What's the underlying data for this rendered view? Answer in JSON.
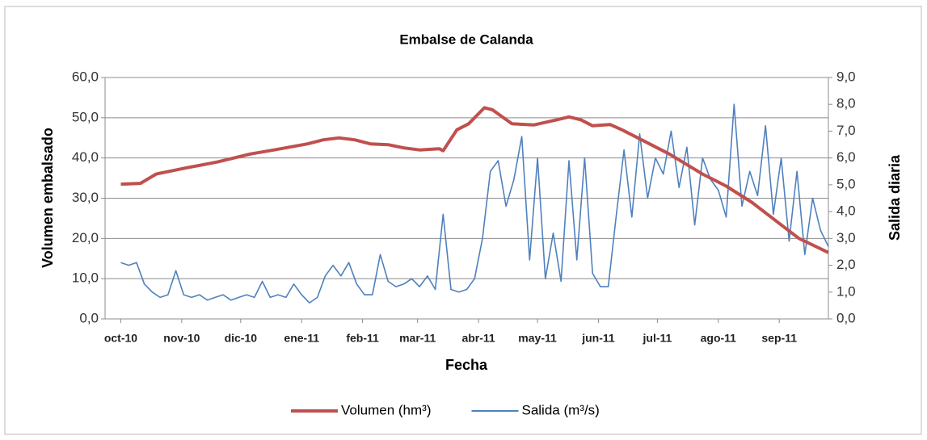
{
  "chart_data": {
    "type": "line",
    "title": "Embalse de Calanda",
    "xlabel": "Fecha",
    "ylabel": "Volumen embalsado",
    "y2label": "Salida diaria",
    "xlim": [
      -8,
      360
    ],
    "xticks": [
      {
        "value": 0,
        "label": "oct-10"
      },
      {
        "value": 31,
        "label": "nov-10"
      },
      {
        "value": 61,
        "label": "dic-10"
      },
      {
        "value": 92,
        "label": "ene-11"
      },
      {
        "value": 123,
        "label": "feb-11"
      },
      {
        "value": 151,
        "label": "mar-11"
      },
      {
        "value": 182,
        "label": "abr-11"
      },
      {
        "value": 212,
        "label": "may-11"
      },
      {
        "value": 243,
        "label": "jun-11"
      },
      {
        "value": 273,
        "label": "jul-11"
      },
      {
        "value": 304,
        "label": "ago-11"
      },
      {
        "value": 335,
        "label": "sep-11"
      }
    ],
    "ylim": [
      0,
      60
    ],
    "yticks": [
      {
        "value": 0,
        "label": "0,0"
      },
      {
        "value": 10,
        "label": "10,0"
      },
      {
        "value": 20,
        "label": "20,0"
      },
      {
        "value": 30,
        "label": "30,0"
      },
      {
        "value": 40,
        "label": "40,0"
      },
      {
        "value": 50,
        "label": "50,0"
      },
      {
        "value": 60,
        "label": "60,0"
      }
    ],
    "y2lim": [
      0,
      9
    ],
    "y2ticks": [
      {
        "value": 0,
        "label": "0,0"
      },
      {
        "value": 1,
        "label": "1,0"
      },
      {
        "value": 2,
        "label": "2,0"
      },
      {
        "value": 3,
        "label": "3,0"
      },
      {
        "value": 4,
        "label": "4,0"
      },
      {
        "value": 5,
        "label": "5,0"
      },
      {
        "value": 6,
        "label": "6,0"
      },
      {
        "value": 7,
        "label": "7,0"
      },
      {
        "value": 8,
        "label": "8,0"
      },
      {
        "value": 9,
        "label": "9,0"
      }
    ],
    "grid": true,
    "legend": "bottom",
    "series": [
      {
        "name": "Volumen (hm³)",
        "color": "#c0504d",
        "axis": "y",
        "x": [
          0,
          10,
          18,
          33,
          49,
          66,
          78,
          95,
          103,
          111,
          119,
          127,
          136,
          144,
          152,
          162,
          164,
          171,
          177,
          185,
          189,
          199,
          210,
          222,
          228,
          234,
          240,
          249,
          255,
          267,
          279,
          296,
          308,
          321,
          333,
          345,
          360
        ],
        "values": [
          33.5,
          33.7,
          36,
          37.5,
          39,
          41,
          42,
          43.5,
          44.5,
          45,
          44.5,
          43.5,
          43.3,
          42.5,
          42,
          42.3,
          41.8,
          47,
          48.5,
          52.5,
          52,
          48.5,
          48.2,
          49.5,
          50.2,
          49.5,
          48,
          48.3,
          47,
          44,
          41,
          36,
          33,
          29,
          24.5,
          20,
          16.5
        ]
      },
      {
        "name": "Salida (m³/s)",
        "color": "#4f81bd",
        "axis": "y2",
        "x": [
          0,
          4,
          8,
          12,
          16,
          20,
          24,
          28,
          32,
          36,
          40,
          44,
          48,
          52,
          56,
          60,
          64,
          68,
          72,
          76,
          80,
          84,
          88,
          92,
          96,
          100,
          104,
          108,
          112,
          116,
          120,
          124,
          128,
          132,
          136,
          140,
          144,
          148,
          152,
          156,
          160,
          164,
          168,
          172,
          176,
          180,
          184,
          188,
          192,
          196,
          200,
          204,
          208,
          212,
          216,
          220,
          224,
          228,
          232,
          236,
          240,
          244,
          248,
          252,
          256,
          260,
          264,
          268,
          272,
          276,
          280,
          284,
          288,
          292,
          296,
          300,
          304,
          308,
          312,
          316,
          320,
          324,
          328,
          332,
          336,
          340,
          344,
          348,
          352,
          356,
          360
        ],
        "values": [
          2.1,
          2.0,
          2.1,
          1.3,
          1.0,
          0.8,
          0.9,
          1.8,
          0.9,
          0.8,
          0.9,
          0.7,
          0.8,
          0.9,
          0.7,
          0.8,
          0.9,
          0.8,
          1.4,
          0.8,
          0.9,
          0.8,
          1.3,
          0.9,
          0.6,
          0.8,
          1.6,
          2.0,
          1.6,
          2.1,
          1.3,
          0.9,
          0.9,
          2.4,
          1.4,
          1.2,
          1.3,
          1.5,
          1.2,
          1.6,
          1.1,
          3.9,
          1.1,
          1.0,
          1.1,
          1.5,
          3.0,
          5.5,
          5.9,
          4.2,
          5.2,
          6.8,
          2.2,
          6.0,
          1.5,
          3.2,
          1.4,
          5.9,
          2.2,
          6.0,
          1.7,
          1.2,
          1.2,
          3.8,
          6.3,
          3.8,
          6.9,
          4.5,
          6.0,
          5.4,
          7.0,
          4.9,
          6.4,
          3.5,
          6.0,
          5.2,
          4.8,
          3.8,
          8.0,
          4.2,
          5.5,
          4.6,
          7.2,
          3.9,
          6.0,
          2.9,
          5.5,
          2.4,
          4.5,
          3.3,
          2.7
        ]
      }
    ]
  }
}
